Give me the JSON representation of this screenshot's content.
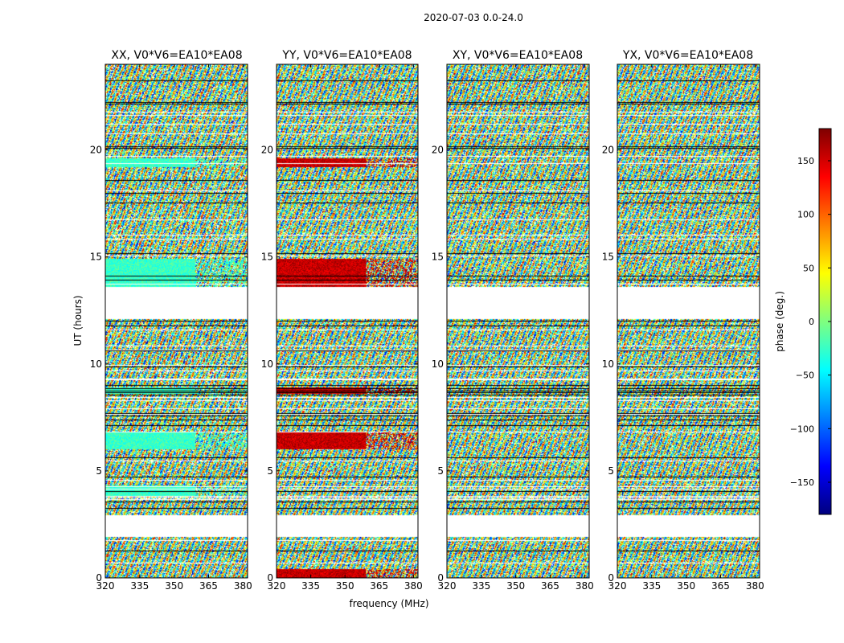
{
  "figure": {
    "suptitle": "2020-07-03 0.0-24.0"
  },
  "chart_data": {
    "type": "heatmap",
    "suptitle": "2020-07-03 0.0-24.0",
    "xlabel": "frequency (MHz)",
    "ylabel": "UT (hours)",
    "xlim": [
      320,
      382
    ],
    "ylim": [
      0,
      24
    ],
    "xticks": [
      320,
      335,
      350,
      365,
      380
    ],
    "yticks": [
      0,
      5,
      10,
      15,
      20
    ],
    "colormap": "jet",
    "colorbar": {
      "label": "phase (deg.)",
      "range": [
        -180,
        180
      ],
      "ticks": [
        -150,
        -100,
        -50,
        0,
        50,
        100,
        150
      ],
      "tick_labels": [
        "−150",
        "−100",
        "−50",
        "0",
        "50",
        "100",
        "150"
      ]
    },
    "flagged_ut_ranges": [
      [
        1.9,
        2.9
      ],
      [
        12.1,
        13.6
      ]
    ],
    "panels": [
      {
        "title": "XX, V0*V6=EA10*EA08",
        "dominant_phase_deg": -25,
        "coherent_ut_ranges": [
          [
            3.8,
            4.3
          ],
          [
            6.0,
            6.8
          ],
          [
            8.6,
            8.9
          ],
          [
            13.6,
            14.9
          ],
          [
            19.2,
            19.6
          ]
        ]
      },
      {
        "title": "YY, V0*V6=EA10*EA08",
        "dominant_phase_deg": 155,
        "coherent_ut_ranges": [
          [
            0.0,
            0.4
          ],
          [
            6.0,
            6.8
          ],
          [
            8.6,
            8.9
          ],
          [
            13.6,
            14.9
          ],
          [
            19.2,
            19.6
          ]
        ]
      },
      {
        "title": "XY, V0*V6=EA10*EA08",
        "dominant_phase_deg": null,
        "coherent_ut_ranges": []
      },
      {
        "title": "YX, V0*V6=EA10*EA08",
        "dominant_phase_deg": null,
        "coherent_ut_ranges": []
      }
    ]
  }
}
